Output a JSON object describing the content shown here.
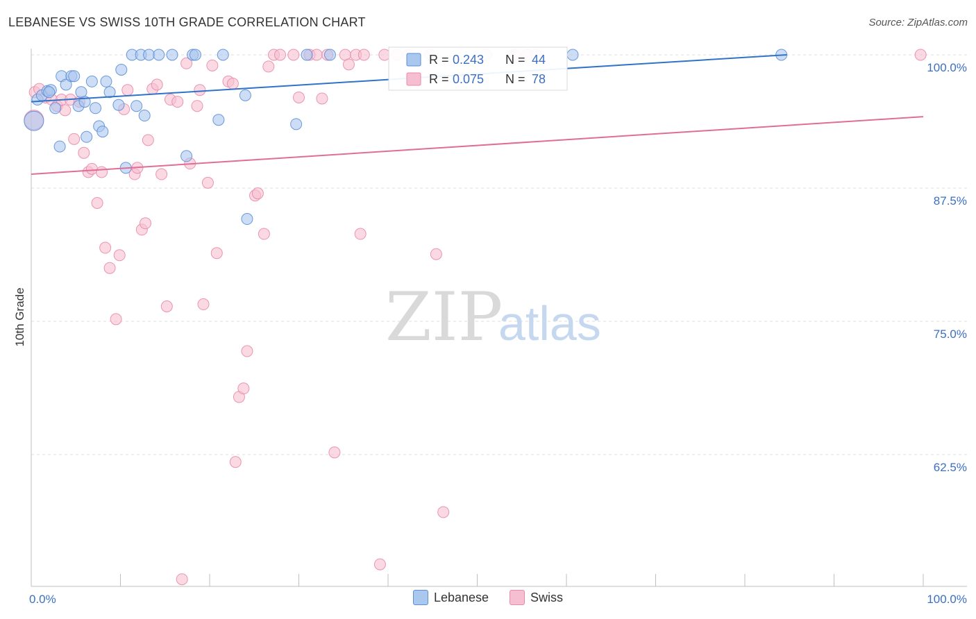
{
  "title": "LEBANESE VS SWISS 10TH GRADE CORRELATION CHART",
  "source": "Source: ZipAtlas.com",
  "watermark": {
    "zip": "ZIP",
    "atlas": "atlas"
  },
  "colors": {
    "lebanese_fill": "#aac7ee",
    "lebanese_stroke": "#5b8fd6",
    "lebanese_line": "#2f73c9",
    "swiss_fill": "#f6bfd1",
    "swiss_stroke": "#e98aab",
    "swiss_line": "#e06d96",
    "value_text": "#3b6fc4"
  },
  "chart_data": {
    "type": "scatter",
    "title": "LEBANESE VS SWISS 10TH GRADE CORRELATION CHART",
    "xlabel": "",
    "ylabel": "10th Grade",
    "xlim": [
      0,
      100
    ],
    "ylim": [
      50.5,
      100.5
    ],
    "x_tick_labels": [
      {
        "value": 0,
        "label": "0.0%"
      },
      {
        "value": 100,
        "label": "100.0%"
      }
    ],
    "y_ticks": [
      {
        "value": 100,
        "label": "100.0%"
      },
      {
        "value": 87.5,
        "label": "87.5%"
      },
      {
        "value": 75,
        "label": "75.0%"
      },
      {
        "value": 62.5,
        "label": "62.5%"
      }
    ],
    "legend": {
      "items": [
        {
          "name": "Lebanese",
          "r_label": "R =",
          "r_value": "0.243",
          "n_label": "N =",
          "n_value": "44"
        },
        {
          "name": "Swiss",
          "r_label": "R =",
          "r_value": "0.075",
          "n_label": "N =",
          "n_value": "78"
        }
      ]
    },
    "series": [
      {
        "name": "Lebanese",
        "trend": {
          "x1": 0,
          "y1": 95.6,
          "x2": 84.7,
          "y2": 100.0
        },
        "points": [
          {
            "x": 0.3,
            "y": 93.8,
            "big": true
          },
          {
            "x": 0.7,
            "y": 95.8
          },
          {
            "x": 1.2,
            "y": 96.2
          },
          {
            "x": 1.8,
            "y": 96.6
          },
          {
            "x": 2.2,
            "y": 96.7
          },
          {
            "x": 2.7,
            "y": 95.0
          },
          {
            "x": 3.2,
            "y": 91.4
          },
          {
            "x": 3.4,
            "y": 98.0
          },
          {
            "x": 3.9,
            "y": 97.2
          },
          {
            "x": 4.5,
            "y": 98.0
          },
          {
            "x": 4.8,
            "y": 98.0
          },
          {
            "x": 5.3,
            "y": 95.2
          },
          {
            "x": 5.6,
            "y": 96.5
          },
          {
            "x": 6.0,
            "y": 95.6
          },
          {
            "x": 6.2,
            "y": 92.3
          },
          {
            "x": 6.8,
            "y": 97.5
          },
          {
            "x": 7.2,
            "y": 95.0
          },
          {
            "x": 7.6,
            "y": 93.3
          },
          {
            "x": 8.0,
            "y": 92.8
          },
          {
            "x": 8.4,
            "y": 97.5
          },
          {
            "x": 8.8,
            "y": 96.5
          },
          {
            "x": 9.8,
            "y": 95.3
          },
          {
            "x": 10.1,
            "y": 98.6
          },
          {
            "x": 10.6,
            "y": 89.4
          },
          {
            "x": 11.8,
            "y": 95.2
          },
          {
            "x": 12.7,
            "y": 94.3
          },
          {
            "x": 11.3,
            "y": 100.0
          },
          {
            "x": 12.3,
            "y": 100.0
          },
          {
            "x": 13.2,
            "y": 100.0
          },
          {
            "x": 14.3,
            "y": 100.0
          },
          {
            "x": 15.8,
            "y": 100.0
          },
          {
            "x": 17.4,
            "y": 90.5
          },
          {
            "x": 18.1,
            "y": 100.0
          },
          {
            "x": 18.4,
            "y": 100.0
          },
          {
            "x": 21.0,
            "y": 93.9
          },
          {
            "x": 21.5,
            "y": 100.0
          },
          {
            "x": 24.0,
            "y": 96.2
          },
          {
            "x": 24.2,
            "y": 84.6
          },
          {
            "x": 29.7,
            "y": 93.5
          },
          {
            "x": 30.9,
            "y": 100.0
          },
          {
            "x": 33.5,
            "y": 100.0
          },
          {
            "x": 60.7,
            "y": 100.0
          },
          {
            "x": 84.1,
            "y": 100.0
          },
          {
            "x": 2.0,
            "y": 96.5
          }
        ]
      },
      {
        "name": "Swiss",
        "trend": {
          "x1": 0,
          "y1": 88.8,
          "x2": 100,
          "y2": 94.2
        },
        "points": [
          {
            "x": 0.4,
            "y": 96.5
          },
          {
            "x": 0.9,
            "y": 96.8
          },
          {
            "x": 1.6,
            "y": 96.0
          },
          {
            "x": 2.3,
            "y": 95.8
          },
          {
            "x": 2.9,
            "y": 95.2
          },
          {
            "x": 3.4,
            "y": 95.8
          },
          {
            "x": 3.8,
            "y": 94.8
          },
          {
            "x": 4.4,
            "y": 95.8
          },
          {
            "x": 4.8,
            "y": 92.1
          },
          {
            "x": 5.4,
            "y": 95.6
          },
          {
            "x": 5.9,
            "y": 90.8
          },
          {
            "x": 6.4,
            "y": 89.0
          },
          {
            "x": 6.8,
            "y": 89.3
          },
          {
            "x": 7.4,
            "y": 86.1
          },
          {
            "x": 7.9,
            "y": 89.0
          },
          {
            "x": 8.3,
            "y": 81.9
          },
          {
            "x": 8.8,
            "y": 80.0
          },
          {
            "x": 9.5,
            "y": 75.2
          },
          {
            "x": 9.9,
            "y": 81.2
          },
          {
            "x": 10.4,
            "y": 94.9
          },
          {
            "x": 10.8,
            "y": 96.7
          },
          {
            "x": 11.6,
            "y": 88.8
          },
          {
            "x": 11.9,
            "y": 89.4
          },
          {
            "x": 12.4,
            "y": 83.6
          },
          {
            "x": 12.8,
            "y": 84.2
          },
          {
            "x": 13.1,
            "y": 92.0
          },
          {
            "x": 13.6,
            "y": 96.8
          },
          {
            "x": 14.1,
            "y": 97.2
          },
          {
            "x": 14.6,
            "y": 88.8
          },
          {
            "x": 15.2,
            "y": 76.4
          },
          {
            "x": 15.6,
            "y": 95.8
          },
          {
            "x": 16.4,
            "y": 95.6
          },
          {
            "x": 16.9,
            "y": 50.8
          },
          {
            "x": 17.4,
            "y": 99.2
          },
          {
            "x": 17.8,
            "y": 89.8
          },
          {
            "x": 18.6,
            "y": 95.2
          },
          {
            "x": 18.9,
            "y": 96.7
          },
          {
            "x": 19.3,
            "y": 76.6
          },
          {
            "x": 19.8,
            "y": 88.0
          },
          {
            "x": 20.3,
            "y": 99.0
          },
          {
            "x": 20.8,
            "y": 81.4
          },
          {
            "x": 22.1,
            "y": 97.5
          },
          {
            "x": 22.6,
            "y": 97.3
          },
          {
            "x": 22.9,
            "y": 61.8
          },
          {
            "x": 23.3,
            "y": 67.9
          },
          {
            "x": 23.8,
            "y": 68.7
          },
          {
            "x": 24.2,
            "y": 72.2
          },
          {
            "x": 25.1,
            "y": 86.8
          },
          {
            "x": 25.4,
            "y": 87.0
          },
          {
            "x": 26.1,
            "y": 83.2
          },
          {
            "x": 26.6,
            "y": 98.9
          },
          {
            "x": 27.2,
            "y": 100.0
          },
          {
            "x": 27.9,
            "y": 100.0
          },
          {
            "x": 29.4,
            "y": 100.0
          },
          {
            "x": 30.0,
            "y": 96.0
          },
          {
            "x": 31.2,
            "y": 100.0
          },
          {
            "x": 32.0,
            "y": 100.0
          },
          {
            "x": 32.6,
            "y": 95.9
          },
          {
            "x": 33.2,
            "y": 100.0
          },
          {
            "x": 34.0,
            "y": 62.7
          },
          {
            "x": 35.2,
            "y": 100.0
          },
          {
            "x": 35.6,
            "y": 99.1
          },
          {
            "x": 36.4,
            "y": 100.0
          },
          {
            "x": 36.9,
            "y": 83.2
          },
          {
            "x": 37.3,
            "y": 100.0
          },
          {
            "x": 39.1,
            "y": 52.2
          },
          {
            "x": 39.6,
            "y": 100.0
          },
          {
            "x": 41.0,
            "y": 100.0
          },
          {
            "x": 42.3,
            "y": 100.0
          },
          {
            "x": 44.7,
            "y": 100.0
          },
          {
            "x": 45.4,
            "y": 81.3
          },
          {
            "x": 46.2,
            "y": 57.1
          },
          {
            "x": 51.0,
            "y": 100.0
          },
          {
            "x": 54.2,
            "y": 100.0
          },
          {
            "x": 55.6,
            "y": 100.0
          },
          {
            "x": 56.6,
            "y": 100.0
          },
          {
            "x": 99.7,
            "y": 100.0
          },
          {
            "x": 0.3,
            "y": 93.9,
            "big": true
          }
        ]
      }
    ]
  }
}
